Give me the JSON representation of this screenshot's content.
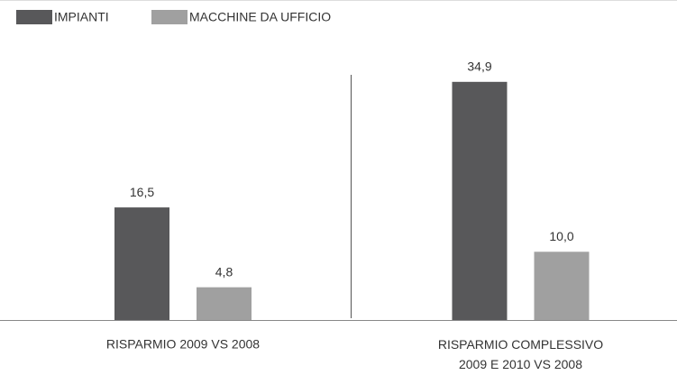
{
  "chart_data": {
    "type": "bar",
    "categories": [
      "RISPARMIO 2009 VS 2008",
      "RISPARMIO COMPLESSIVO\n2009 E 2010 VS 2008"
    ],
    "series": [
      {
        "name": "IMPIANTI",
        "color": "#58585a",
        "values": [
          16.5,
          34.9
        ],
        "value_labels": [
          "16,5",
          "34,9"
        ]
      },
      {
        "name": "MACCHINE DA UFFICIO",
        "color": "#a0a0a0",
        "values": [
          4.8,
          10.0
        ],
        "value_labels": [
          "4,8",
          "10,0"
        ]
      }
    ]
  }
}
